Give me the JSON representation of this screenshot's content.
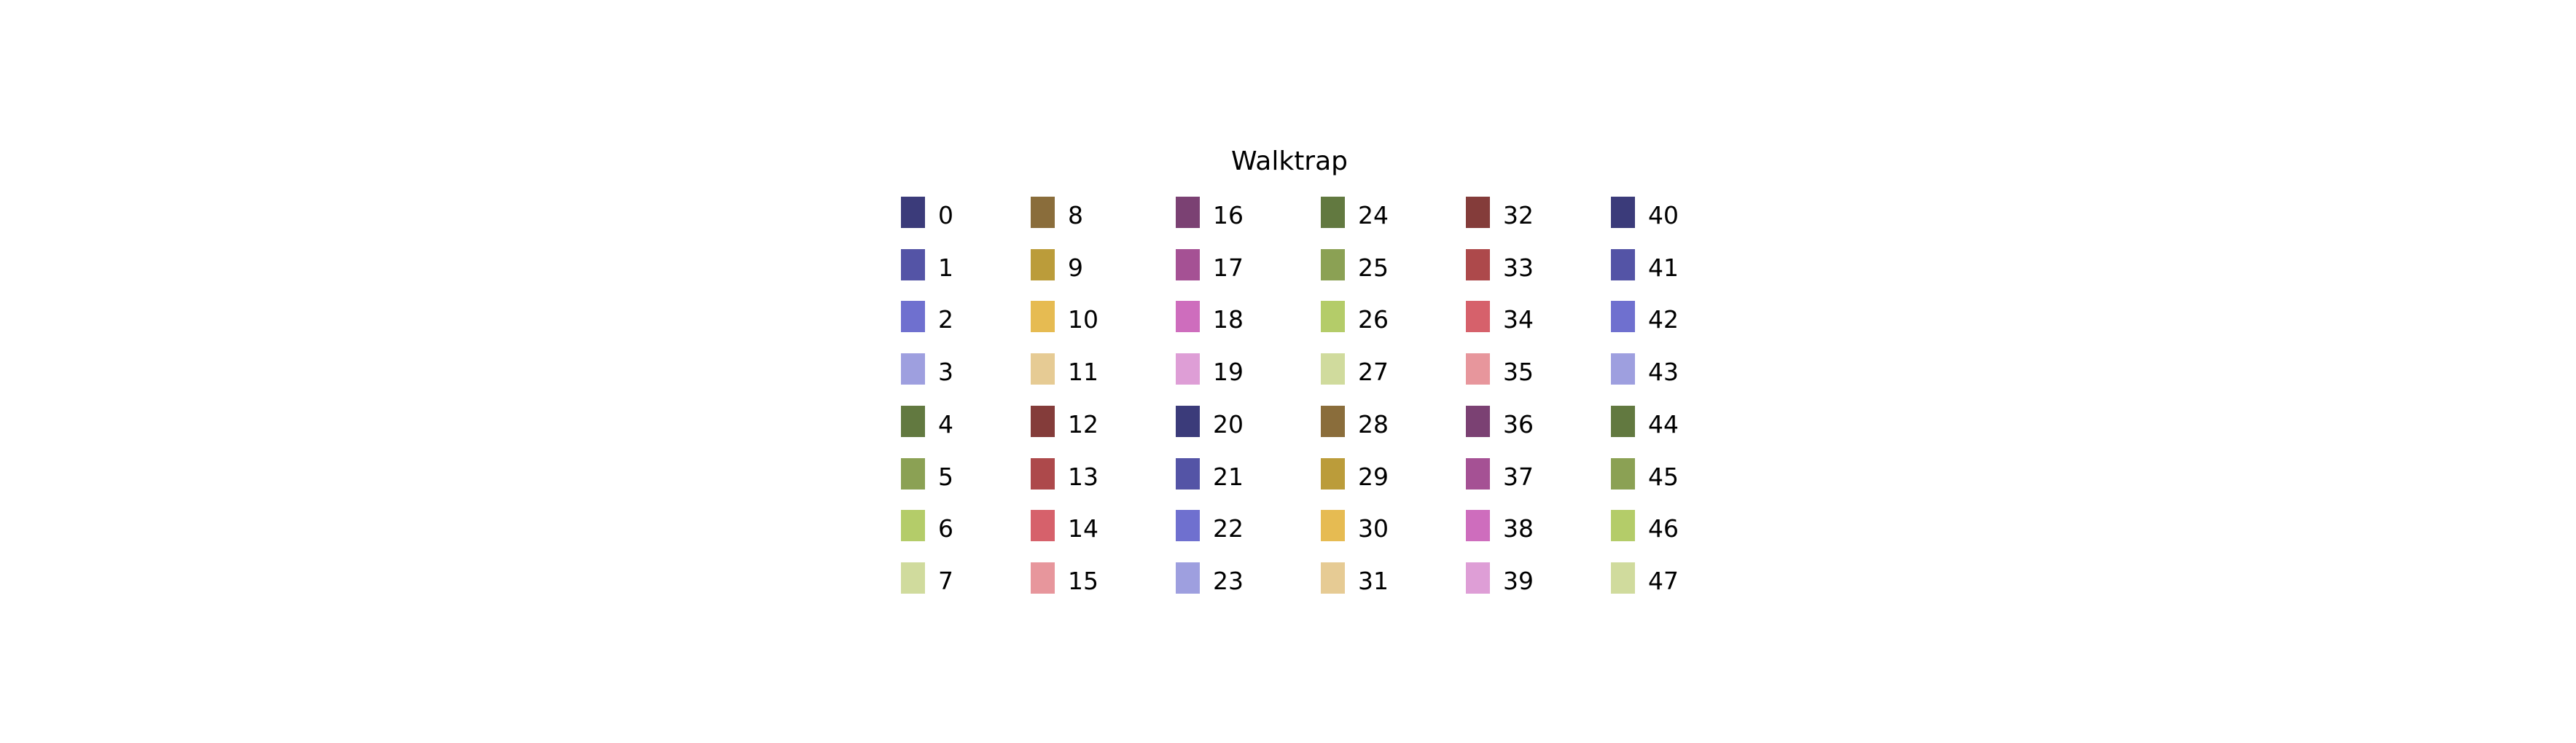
{
  "chart_data": {
    "type": "legend",
    "title": "Walktrap",
    "columns": 6,
    "rows_per_column": 8,
    "entries": [
      {
        "label": "0",
        "color": "#3b3b7a"
      },
      {
        "label": "1",
        "color": "#5454a6"
      },
      {
        "label": "2",
        "color": "#6f70cf"
      },
      {
        "label": "3",
        "color": "#9e9fdf"
      },
      {
        "label": "4",
        "color": "#627940"
      },
      {
        "label": "5",
        "color": "#8ba154"
      },
      {
        "label": "6",
        "color": "#b4cc69"
      },
      {
        "label": "7",
        "color": "#d0db9d"
      },
      {
        "label": "8",
        "color": "#8a6d3b"
      },
      {
        "label": "9",
        "color": "#bb9c3a"
      },
      {
        "label": "10",
        "color": "#e6bb52"
      },
      {
        "label": "11",
        "color": "#e6cb94"
      },
      {
        "label": "12",
        "color": "#843c3a"
      },
      {
        "label": "13",
        "color": "#ad494b"
      },
      {
        "label": "14",
        "color": "#d6616b"
      },
      {
        "label": "15",
        "color": "#e7969c"
      },
      {
        "label": "16",
        "color": "#7b4173"
      },
      {
        "label": "17",
        "color": "#a55194"
      },
      {
        "label": "18",
        "color": "#ce6dbd"
      },
      {
        "label": "19",
        "color": "#de9ed6"
      },
      {
        "label": "20",
        "color": "#3b3b7a"
      },
      {
        "label": "21",
        "color": "#5454a6"
      },
      {
        "label": "22",
        "color": "#6f70cf"
      },
      {
        "label": "23",
        "color": "#9e9fdf"
      },
      {
        "label": "24",
        "color": "#627940"
      },
      {
        "label": "25",
        "color": "#8ba154"
      },
      {
        "label": "26",
        "color": "#b4cc69"
      },
      {
        "label": "27",
        "color": "#d0db9d"
      },
      {
        "label": "28",
        "color": "#8a6d3b"
      },
      {
        "label": "29",
        "color": "#bb9c3a"
      },
      {
        "label": "30",
        "color": "#e6bb52"
      },
      {
        "label": "31",
        "color": "#e6cb94"
      },
      {
        "label": "32",
        "color": "#843c3a"
      },
      {
        "label": "33",
        "color": "#ad494b"
      },
      {
        "label": "34",
        "color": "#d6616b"
      },
      {
        "label": "35",
        "color": "#e7969c"
      },
      {
        "label": "36",
        "color": "#7b4173"
      },
      {
        "label": "37",
        "color": "#a55194"
      },
      {
        "label": "38",
        "color": "#ce6dbd"
      },
      {
        "label": "39",
        "color": "#de9ed6"
      },
      {
        "label": "40",
        "color": "#3b3b7a"
      },
      {
        "label": "41",
        "color": "#5454a6"
      },
      {
        "label": "42",
        "color": "#6f70cf"
      },
      {
        "label": "43",
        "color": "#9e9fdf"
      },
      {
        "label": "44",
        "color": "#627940"
      },
      {
        "label": "45",
        "color": "#8ba154"
      },
      {
        "label": "46",
        "color": "#b4cc69"
      },
      {
        "label": "47",
        "color": "#d0db9d"
      }
    ]
  }
}
